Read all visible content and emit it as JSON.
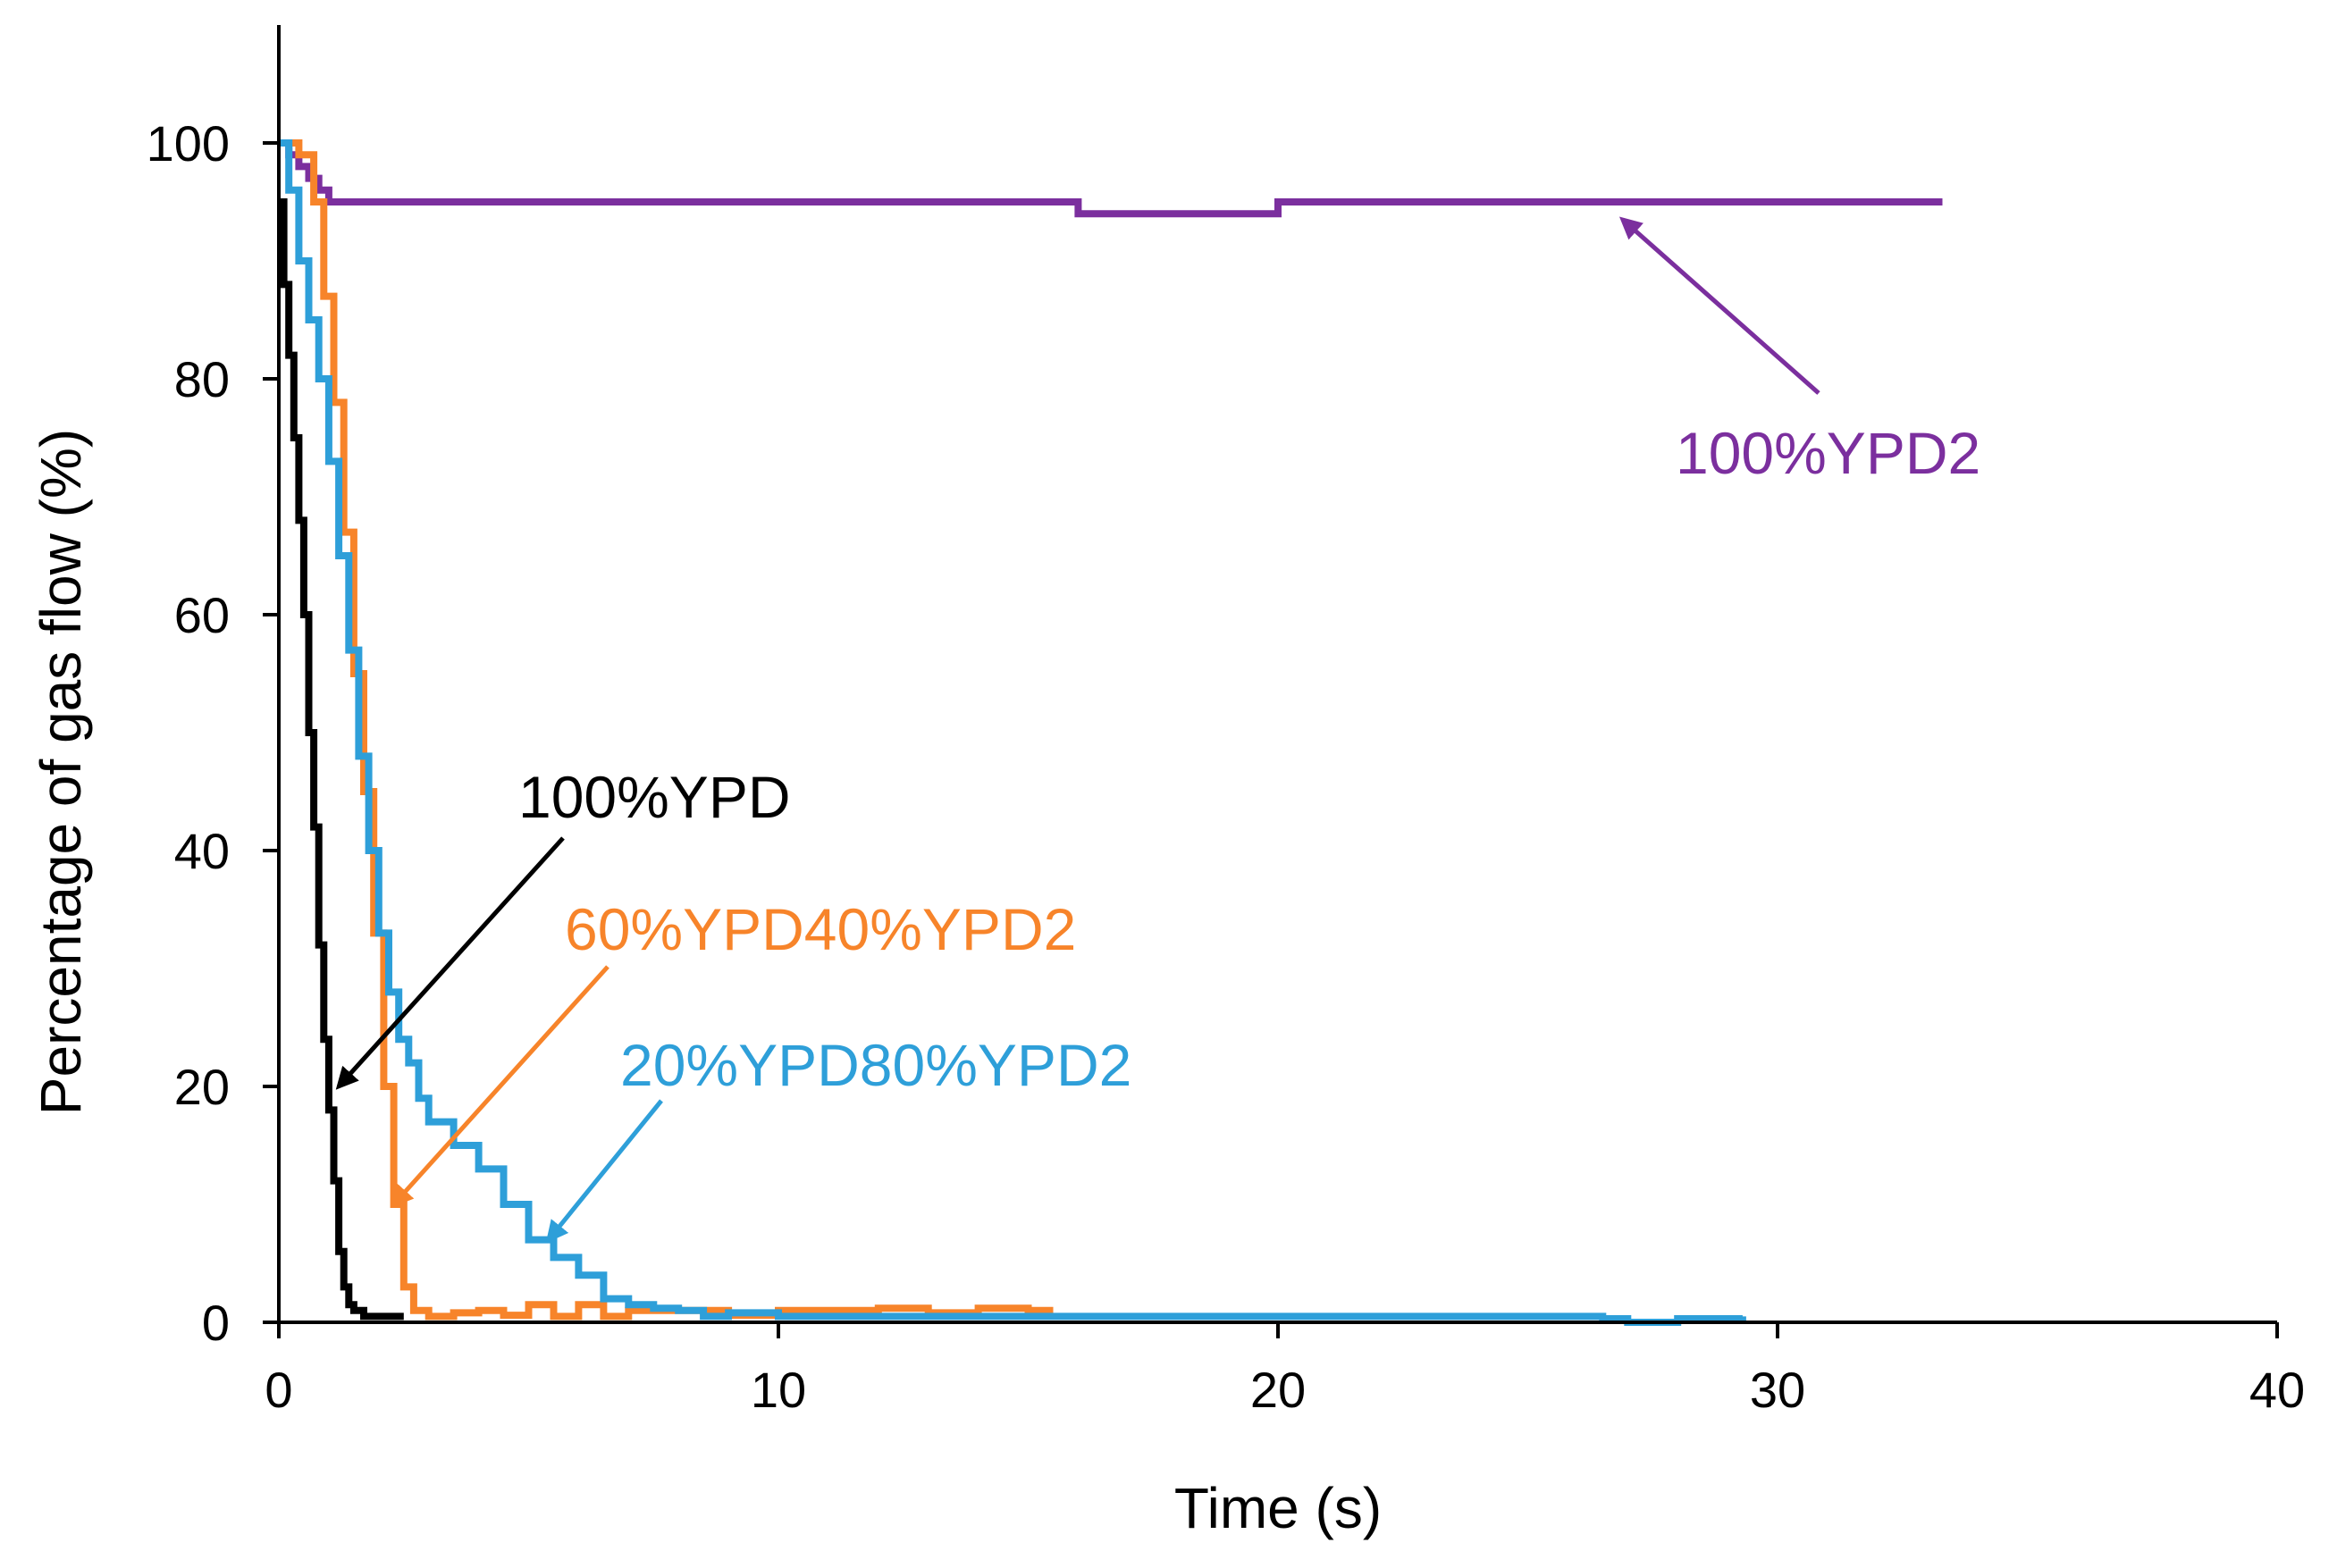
{
  "chart_data": {
    "type": "line",
    "title": "",
    "xlabel": "Time (s)",
    "ylabel": "Percentage of gas flow (%)",
    "xlim": [
      0,
      40
    ],
    "ylim": [
      0,
      110
    ],
    "x_ticks": [
      0,
      10,
      20,
      30,
      40
    ],
    "y_ticks": [
      0,
      20,
      40,
      60,
      80,
      100
    ],
    "x_tick_labels": [
      "0",
      "10",
      "20",
      "30",
      "40"
    ],
    "y_tick_labels": [
      "0",
      "20",
      "40",
      "60",
      "80",
      "100"
    ],
    "grid": false,
    "legend": "none (inline annotations)",
    "series": [
      {
        "name": "100%YPD2",
        "color": "#7B2F9E",
        "x": [
          0,
          0.2,
          0.4,
          0.6,
          0.8,
          1.0,
          2,
          5,
          10,
          15,
          16,
          20,
          23.5,
          25,
          26.5,
          28,
          29,
          30,
          33,
          33.3
        ],
        "y": [
          100,
          99,
          98,
          97,
          96,
          95,
          95,
          95,
          95,
          95,
          94,
          95,
          95,
          95,
          95,
          95,
          95,
          95,
          95,
          95
        ]
      },
      {
        "name": "100%YPD",
        "color": "#000000",
        "x": [
          0,
          0.1,
          0.2,
          0.3,
          0.4,
          0.5,
          0.6,
          0.7,
          0.8,
          0.9,
          1.0,
          1.1,
          1.2,
          1.3,
          1.4,
          1.5,
          1.7,
          2.0,
          2.5
        ],
        "y": [
          95,
          88,
          82,
          75,
          68,
          60,
          50,
          42,
          32,
          24,
          18,
          12,
          6,
          3,
          1.5,
          1,
          0.5,
          0.5,
          0.5
        ]
      },
      {
        "name": "60%YPD40%YPD2",
        "color": "#F7842A",
        "x": [
          0,
          0.4,
          0.7,
          0.9,
          1.1,
          1.3,
          1.5,
          1.7,
          1.9,
          2.1,
          2.3,
          2.5,
          2.7,
          3.0,
          3.5,
          4.0,
          4.5,
          5.0,
          5.5,
          6.0,
          6.5,
          7.0,
          8.0,
          9.0,
          10.0,
          11.0,
          12.0,
          13.0,
          14.0,
          15.0,
          15.5
        ],
        "y": [
          100,
          99,
          95,
          87,
          78,
          67,
          55,
          45,
          33,
          20,
          10,
          3,
          1,
          0.5,
          0.8,
          1,
          0.6,
          1.5,
          0.5,
          1.5,
          0.5,
          1,
          1,
          0.6,
          1,
          1,
          1.2,
          0.8,
          1.2,
          1,
          1
        ]
      },
      {
        "name": "20%YPD80%YPD2",
        "color": "#2E9FD9",
        "x": [
          0,
          0.2,
          0.4,
          0.6,
          0.8,
          1.0,
          1.2,
          1.4,
          1.6,
          1.8,
          2.0,
          2.2,
          2.4,
          2.6,
          2.8,
          3.0,
          3.5,
          4.0,
          4.5,
          5.0,
          5.5,
          6.0,
          6.5,
          7.0,
          7.5,
          8.0,
          8.5,
          9.0,
          10,
          15,
          20,
          25,
          26.5,
          27,
          28,
          29.3
        ],
        "y": [
          100,
          96,
          90,
          85,
          80,
          73,
          65,
          57,
          48,
          40,
          33,
          28,
          24,
          22,
          19,
          17,
          15,
          13,
          10,
          7,
          5.5,
          4,
          2,
          1.5,
          1.2,
          1,
          0.5,
          0.8,
          0.5,
          0.5,
          0.5,
          0.5,
          0.3,
          0,
          0.3,
          0.5
        ]
      }
    ],
    "annotations": [
      {
        "text": "100%YPD2",
        "color": "#7B2F9E",
        "points_to": {
          "x": 26.9,
          "y": 93.5
        }
      },
      {
        "text": "100%YPD",
        "color": "#000000",
        "points_to": {
          "x": 1.2,
          "y": 20
        }
      },
      {
        "text": "60%YPD40%YPD2",
        "color": "#F7842A",
        "points_to": {
          "x": 2.3,
          "y": 10
        }
      },
      {
        "text": "20%YPD80%YPD2",
        "color": "#2E9FD9",
        "points_to": {
          "x": 5.4,
          "y": 7
        }
      }
    ]
  }
}
